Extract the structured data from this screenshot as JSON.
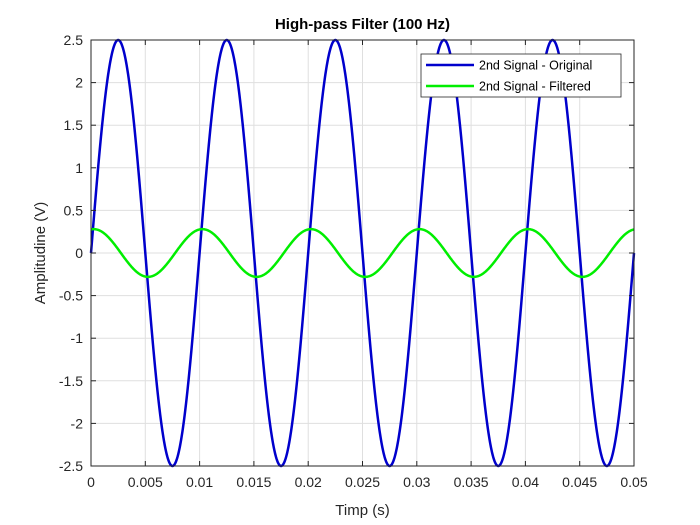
{
  "chart_data": {
    "type": "line",
    "title": "High-pass Filter (100 Hz)",
    "xlabel": "Timp (s)",
    "ylabel": "Amplitudine (V)",
    "xlim": [
      0,
      0.05
    ],
    "ylim": [
      -2.5,
      2.5
    ],
    "xticks": [
      0,
      0.005,
      0.01,
      0.015,
      0.02,
      0.025,
      0.03,
      0.035,
      0.04,
      0.045,
      0.05
    ],
    "xtick_labels": [
      "0",
      "0.005",
      "0.01",
      "0.015",
      "0.02",
      "0.025",
      "0.03",
      "0.035",
      "0.04",
      "0.045",
      "0.05"
    ],
    "yticks": [
      -2.5,
      -2,
      -1.5,
      -1,
      -0.5,
      0,
      0.5,
      1,
      1.5,
      2,
      2.5
    ],
    "ytick_labels": [
      "-2.5",
      "-2",
      "-1.5",
      "-1",
      "-0.5",
      "0",
      "0.5",
      "1",
      "1.5",
      "2",
      "2.5"
    ],
    "grid": true,
    "legend_position": "top-right",
    "series": [
      {
        "name": "2nd Signal - Original",
        "color": "#0000cc",
        "function": "sine",
        "amplitude": 2.5,
        "frequency_hz": 100,
        "phase_deg": 0
      },
      {
        "name": "2nd Signal - Filtered",
        "color": "#00ee00",
        "function": "sine",
        "amplitude": 0.28,
        "frequency_hz": 100,
        "phase_deg": 81
      }
    ]
  }
}
